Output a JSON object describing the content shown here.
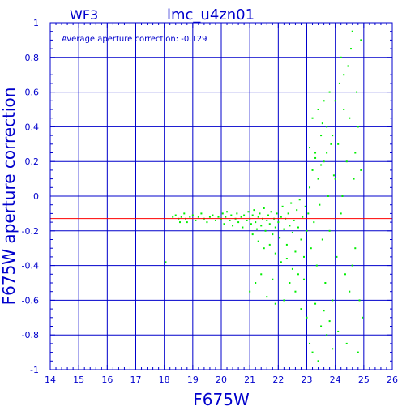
{
  "chart_data": {
    "type": "scatter",
    "title": "lmc_u4zn01",
    "panel_label": "WF3",
    "annotation": "Average aperture correction: -0.129",
    "xlabel": "F675W",
    "ylabel": "F675W aperture correction",
    "xlim": [
      14,
      26
    ],
    "ylim": [
      -1,
      1
    ],
    "x_ticks": [
      "14",
      "15",
      "16",
      "17",
      "18",
      "19",
      "20",
      "21",
      "22",
      "23",
      "24",
      "25",
      "26"
    ],
    "y_ticks": [
      "-1",
      "-0.8",
      "-0.6",
      "-0.4",
      "-0.2",
      "0",
      "0.2",
      "0.4",
      "0.6",
      "0.8",
      "1"
    ],
    "grid": true,
    "reference_line": {
      "y": -0.129,
      "color": "#ff0000"
    },
    "colors": {
      "axes": "#0000cc",
      "points": "#00ee00",
      "reference": "#ff0000",
      "background": "#ffffff"
    },
    "series": [
      {
        "points": [
          [
            18.05,
            -0.38
          ],
          [
            18.3,
            -0.12
          ],
          [
            18.4,
            -0.11
          ],
          [
            18.5,
            -0.13
          ],
          [
            18.55,
            -0.15
          ],
          [
            18.6,
            -0.12
          ],
          [
            18.7,
            -0.1
          ],
          [
            18.75,
            -0.13
          ],
          [
            18.8,
            -0.15
          ],
          [
            18.9,
            -0.12
          ],
          [
            19.0,
            -0.11
          ],
          [
            19.1,
            -0.14
          ],
          [
            19.2,
            -0.12
          ],
          [
            19.3,
            -0.1
          ],
          [
            19.4,
            -0.13
          ],
          [
            19.5,
            -0.15
          ],
          [
            19.6,
            -0.12
          ],
          [
            19.7,
            -0.11
          ],
          [
            19.8,
            -0.14
          ],
          [
            19.9,
            -0.12
          ],
          [
            20.0,
            -0.13
          ],
          [
            20.05,
            -0.1
          ],
          [
            20.1,
            -0.16
          ],
          [
            20.15,
            -0.12
          ],
          [
            20.2,
            -0.09
          ],
          [
            20.3,
            -0.14
          ],
          [
            20.35,
            -0.11
          ],
          [
            20.4,
            -0.17
          ],
          [
            20.5,
            -0.13
          ],
          [
            20.55,
            -0.1
          ],
          [
            20.6,
            -0.15
          ],
          [
            20.7,
            -0.12
          ],
          [
            20.75,
            -0.18
          ],
          [
            20.8,
            -0.11
          ],
          [
            20.9,
            -0.14
          ],
          [
            20.95,
            -0.09
          ],
          [
            21.0,
            -0.13
          ],
          [
            21.05,
            -0.16
          ],
          [
            21.1,
            -0.11
          ],
          [
            21.15,
            -0.08
          ],
          [
            21.2,
            -0.15
          ],
          [
            21.25,
            -0.19
          ],
          [
            21.3,
            -0.12
          ],
          [
            21.35,
            -0.1
          ],
          [
            21.4,
            -0.17
          ],
          [
            21.45,
            -0.13
          ],
          [
            21.5,
            -0.07
          ],
          [
            21.55,
            -0.2
          ],
          [
            21.6,
            -0.14
          ],
          [
            21.65,
            -0.11
          ],
          [
            21.7,
            -0.16
          ],
          [
            21.75,
            -0.09
          ],
          [
            21.8,
            -0.22
          ],
          [
            21.85,
            -0.13
          ],
          [
            21.9,
            -0.18
          ],
          [
            21.95,
            -0.1
          ],
          [
            22.0,
            -0.15
          ],
          [
            22.05,
            -0.24
          ],
          [
            22.1,
            -0.12
          ],
          [
            22.15,
            -0.06
          ],
          [
            22.2,
            -0.19
          ],
          [
            22.25,
            -0.13
          ],
          [
            22.3,
            -0.28
          ],
          [
            22.35,
            -0.1
          ],
          [
            22.4,
            -0.17
          ],
          [
            22.45,
            -0.04
          ],
          [
            22.5,
            -0.21
          ],
          [
            22.55,
            -0.14
          ],
          [
            22.6,
            -0.32
          ],
          [
            22.65,
            -0.08
          ],
          [
            22.7,
            -0.18
          ],
          [
            22.75,
            -0.02
          ],
          [
            22.8,
            -0.25
          ],
          [
            22.85,
            -0.12
          ],
          [
            22.9,
            -0.35
          ],
          [
            22.95,
            -0.06
          ],
          [
            21.1,
            -0.22
          ],
          [
            21.3,
            -0.26
          ],
          [
            21.5,
            -0.3
          ],
          [
            21.7,
            -0.28
          ],
          [
            21.9,
            -0.33
          ],
          [
            22.1,
            -0.38
          ],
          [
            22.3,
            -0.36
          ],
          [
            22.5,
            -0.42
          ],
          [
            22.7,
            -0.45
          ],
          [
            22.9,
            -0.48
          ],
          [
            21.4,
            -0.45
          ],
          [
            21.2,
            -0.5
          ],
          [
            21.0,
            -0.55
          ],
          [
            21.6,
            -0.58
          ],
          [
            21.9,
            -0.62
          ],
          [
            22.2,
            -0.6
          ],
          [
            22.6,
            -0.55
          ],
          [
            22.8,
            -0.65
          ],
          [
            22.4,
            -0.5
          ],
          [
            21.8,
            -0.48
          ],
          [
            23.0,
            -0.2
          ],
          [
            23.05,
            -0.1
          ],
          [
            23.1,
            0.05
          ],
          [
            23.15,
            -0.3
          ],
          [
            23.2,
            0.15
          ],
          [
            23.25,
            -0.15
          ],
          [
            23.3,
            0.25
          ],
          [
            23.35,
            -0.4
          ],
          [
            23.4,
            0.1
          ],
          [
            23.45,
            -0.05
          ],
          [
            23.5,
            0.35
          ],
          [
            23.55,
            -0.25
          ],
          [
            23.6,
            0.2
          ],
          [
            23.65,
            -0.5
          ],
          [
            23.7,
            0.4
          ],
          [
            23.75,
            0.0
          ],
          [
            23.8,
            -0.2
          ],
          [
            23.85,
            0.3
          ],
          [
            23.9,
            -0.6
          ],
          [
            23.95,
            0.12
          ],
          [
            23.0,
            -0.7
          ],
          [
            23.1,
            -0.85
          ],
          [
            23.2,
            -0.9
          ],
          [
            23.3,
            -0.62
          ],
          [
            23.5,
            -0.75
          ],
          [
            23.7,
            -0.8
          ],
          [
            23.9,
            -0.88
          ],
          [
            23.4,
            -0.95
          ],
          [
            23.6,
            -0.66
          ],
          [
            23.8,
            -0.72
          ],
          [
            23.2,
            0.45
          ],
          [
            23.4,
            0.5
          ],
          [
            23.6,
            0.55
          ],
          [
            23.8,
            0.6
          ],
          [
            23.9,
            0.35
          ],
          [
            23.7,
            0.25
          ],
          [
            23.5,
            0.18
          ],
          [
            23.3,
            0.22
          ],
          [
            23.1,
            0.28
          ],
          [
            23.55,
            0.42
          ],
          [
            24.0,
            0.1
          ],
          [
            24.05,
            -0.35
          ],
          [
            24.1,
            0.3
          ],
          [
            24.15,
            0.65
          ],
          [
            24.2,
            -0.1
          ],
          [
            24.25,
            0.0
          ],
          [
            24.3,
            0.5
          ],
          [
            24.35,
            -0.45
          ],
          [
            24.4,
            0.2
          ],
          [
            24.45,
            0.75
          ],
          [
            24.5,
            -0.55
          ],
          [
            24.55,
            0.85
          ],
          [
            24.6,
            0.95
          ],
          [
            24.65,
            0.1
          ],
          [
            24.7,
            -0.3
          ],
          [
            24.75,
            0.6
          ],
          [
            24.8,
            0.4
          ],
          [
            24.85,
            -0.6
          ],
          [
            24.9,
            0.9
          ],
          [
            24.95,
            -0.7
          ],
          [
            24.1,
            -0.78
          ],
          [
            24.2,
            0.8
          ],
          [
            24.3,
            0.7
          ],
          [
            24.4,
            -0.85
          ],
          [
            24.5,
            0.45
          ],
          [
            24.6,
            -0.4
          ],
          [
            24.7,
            0.25
          ],
          [
            24.8,
            -0.9
          ],
          [
            24.9,
            0.15
          ],
          [
            24.0,
            0.55
          ]
        ]
      }
    ]
  }
}
